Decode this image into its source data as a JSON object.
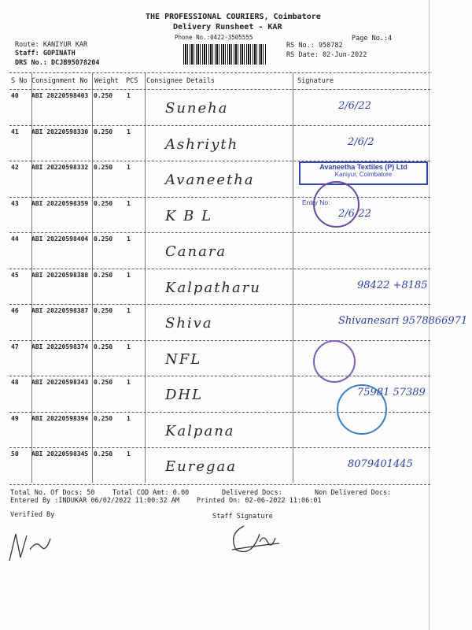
{
  "header": {
    "company": "THE PROFESSIONAL COURIERS, Coimbatore",
    "title": "Delivery Runsheet - KAR",
    "phone": "Phone No.:0422-3505555",
    "page_no": "Page No.:4",
    "route": "Route: KANIYUR KAR",
    "staff": "Staff: GOPINATH",
    "drs_no": "DRS No.: DCJB95078204",
    "rs_no": "RS No.: 950782",
    "rs_date": "RS Date: 02-Jun-2022"
  },
  "columns": [
    "S No",
    "Consignment No",
    "Weight",
    "PCS",
    "Consignee Details",
    "Signature"
  ],
  "rows": [
    {
      "sno": "40",
      "cn": "ABI 20220598403",
      "weight": "0.250",
      "pcs": "1",
      "consignee": "Suneha",
      "signature": "2/6/22"
    },
    {
      "sno": "41",
      "cn": "ABI 20220598330",
      "weight": "0.250",
      "pcs": "1",
      "consignee": "Ashriyth",
      "signature": "2/6/2"
    },
    {
      "sno": "42",
      "cn": "ABI 20220598332",
      "weight": "0.250",
      "pcs": "1",
      "consignee": "Avaneetha",
      "signature": ""
    },
    {
      "sno": "43",
      "cn": "ABI 20220598359",
      "weight": "0.250",
      "pcs": "1",
      "consignee": "K B L",
      "signature": "2/6/22"
    },
    {
      "sno": "44",
      "cn": "ABI 20220598404",
      "weight": "0.250",
      "pcs": "1",
      "consignee": "Canara",
      "signature": ""
    },
    {
      "sno": "45",
      "cn": "ABI 20220598388",
      "weight": "0.250",
      "pcs": "1",
      "consignee": "Kalpatharu",
      "signature": "98422 +8185"
    },
    {
      "sno": "46",
      "cn": "ABI 20220598387",
      "weight": "0.250",
      "pcs": "1",
      "consignee": "Shiva",
      "signature": "Shivanesari 9578866971"
    },
    {
      "sno": "47",
      "cn": "ABI 20220598374",
      "weight": "0.250",
      "pcs": "1",
      "consignee": "NFL",
      "signature": ""
    },
    {
      "sno": "48",
      "cn": "ABI 20220598343",
      "weight": "0.250",
      "pcs": "1",
      "consignee": "DHL",
      "signature": "75981 57389"
    },
    {
      "sno": "49",
      "cn": "ABI 20220598394",
      "weight": "0.250",
      "pcs": "1",
      "consignee": "Kalpana",
      "signature": ""
    },
    {
      "sno": "50",
      "cn": "ABI 20220598345",
      "weight": "0.250",
      "pcs": "1",
      "consignee": "Euregaa",
      "signature": "8079401445"
    }
  ],
  "stamps": {
    "avaneetha": "Avaneetha Textiles (P) Ltd",
    "avaneetha_sub": "Kaniyur, Coimbatore",
    "entry": "Entry No:"
  },
  "footer": {
    "total_docs": "Total No. Of Docs:  50",
    "total_cod": "Total COD Amt:     0.00",
    "delivered": "Delivered Docs:",
    "non_delivered": "Non Delivered Docs:",
    "entered_by": "Entered By :INDUKAR 06/02/2022 11:00:32 AM",
    "printed_on": "Printed On: 02-06-2022 11:06:01",
    "verified_by": "Verified By",
    "staff_signature": "Staff Signature"
  },
  "colors": {
    "ink": "#2b3fa8",
    "stamp_purple": "#6a4aa0",
    "stamp_blue": "#3b7fc4"
  }
}
